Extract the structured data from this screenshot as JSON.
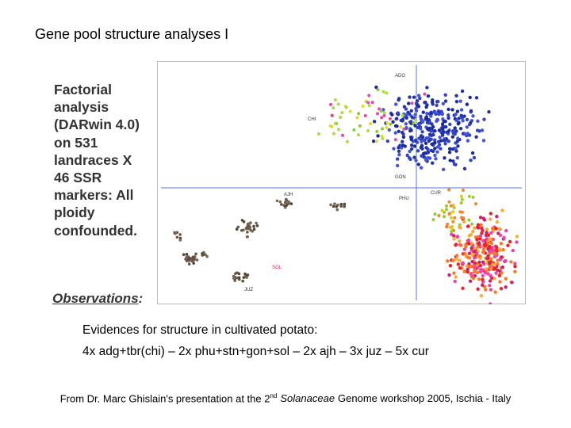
{
  "title": "Gene pool structure analyses I",
  "figure": {
    "caption_lines": [
      "Factorial",
      "analysis",
      "(DARwin 4.0)",
      "on 531",
      "landraces X",
      "46 SSR",
      "markers: All",
      "ploidy",
      "confounded."
    ],
    "observations_label": "Observations",
    "observations_suffix": ":",
    "plot_labels": [
      "ADG",
      "CHI",
      "GON",
      "CUR",
      "PHU",
      "SOL",
      "AJH",
      "JUZ"
    ]
  },
  "body": {
    "lines": [
      "Evidences for structure in cultivated potato:",
      "4x adg+tbr(chi) – 2x phu+stn+gon+sol – 2x ajh – 3x juz – 5x cur"
    ]
  },
  "footer": {
    "before": "From Dr. Marc Ghislain's presentation at the 2",
    "superscript": "nd",
    "italic": "Solanaceae",
    "after": "Genome workshop 2005, Ischia - Italy"
  }
}
